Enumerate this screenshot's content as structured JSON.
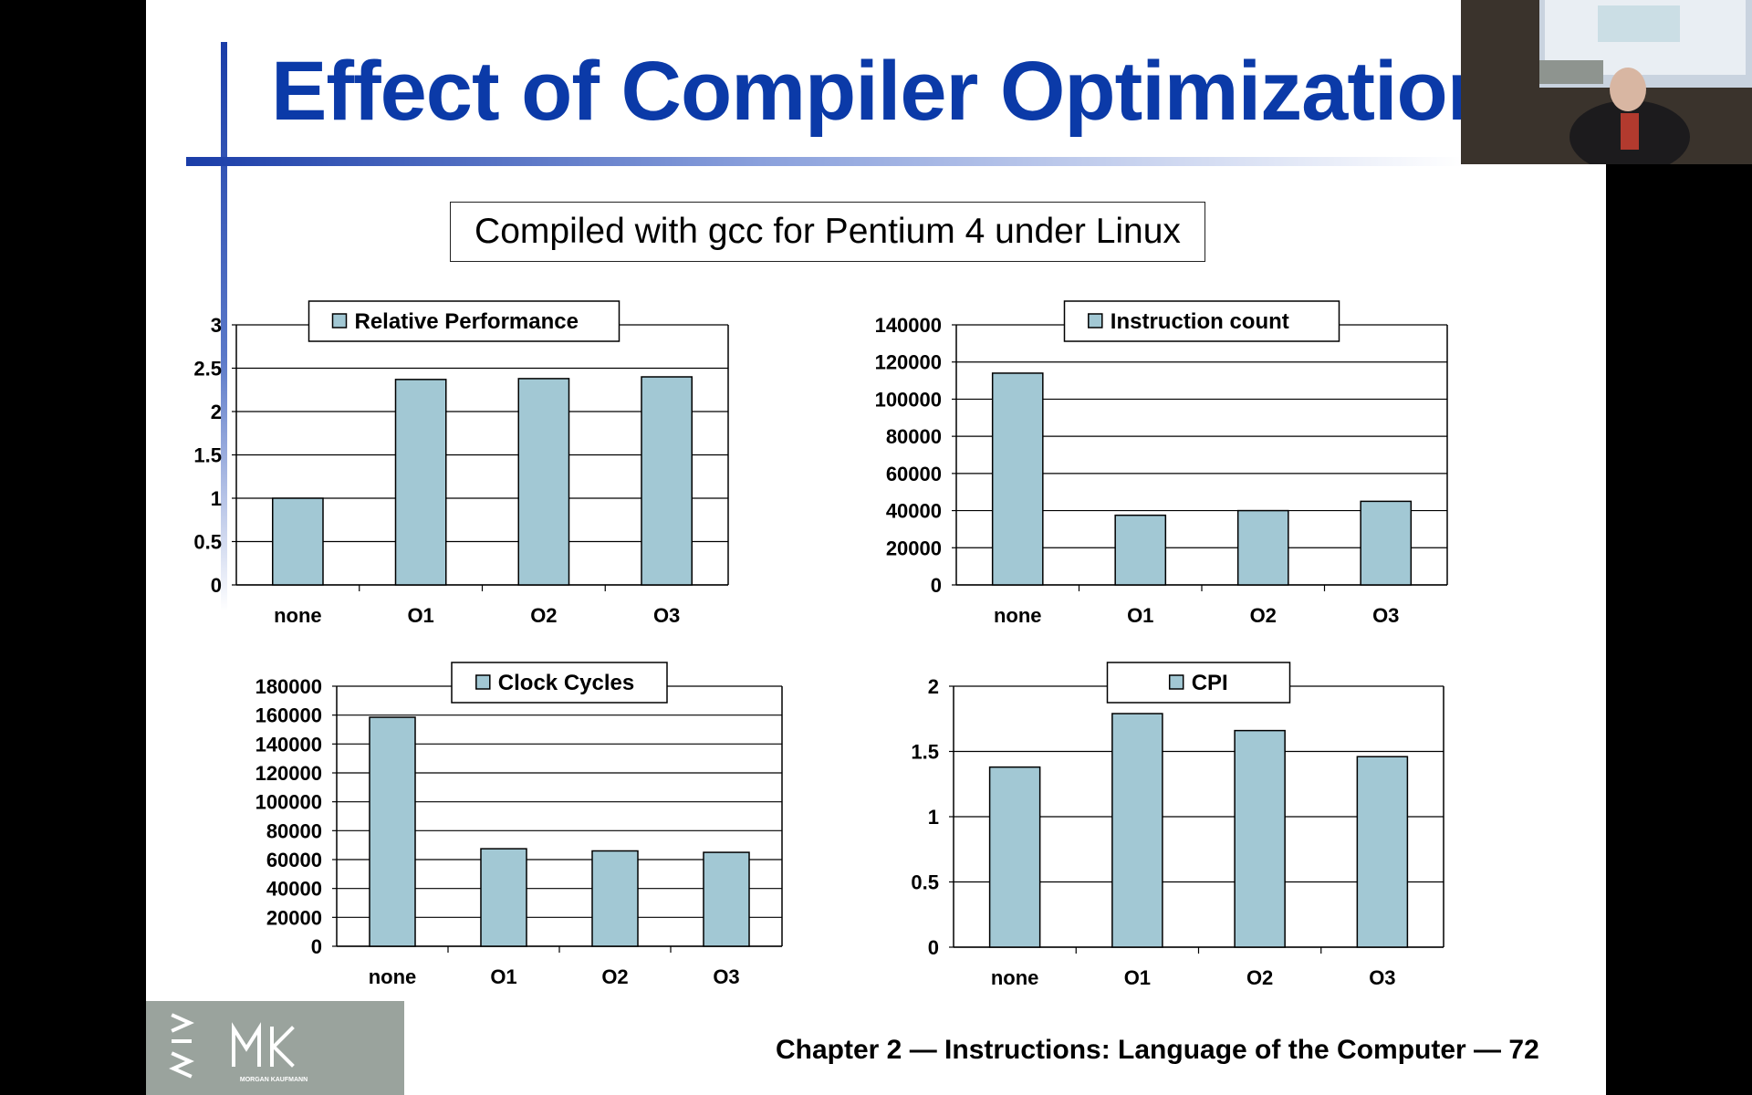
{
  "slide": {
    "title": "Effect of Compiler Optimization",
    "subtitle": "Compiled with gcc for Pentium 4 under Linux",
    "footer": "Chapter 2 — Instructions: Language of the Computer — 72",
    "logo_text": "MORGAN KAUFMANN"
  },
  "colors": {
    "bar": "#a2c8d4",
    "title": "#0b3aa8",
    "accent_bar": "#1a3da8",
    "logo_bg": "#9aa39d"
  },
  "webcam": {
    "icon": "presenter-video-feed"
  },
  "chart_data": [
    {
      "type": "bar",
      "categories": [
        "none",
        "O1",
        "O2",
        "O3"
      ],
      "series": [
        {
          "name": "Relative Performance",
          "values": [
            1.0,
            2.37,
            2.38,
            2.4
          ]
        }
      ],
      "ylim": [
        0,
        3
      ],
      "yticks": [
        0,
        0.5,
        1,
        1.5,
        2,
        2.5,
        3
      ],
      "ytick_labels": [
        "0",
        "0.5",
        "1",
        "1.5",
        "2",
        "2.5",
        "3"
      ],
      "grid": true,
      "legend": "top"
    },
    {
      "type": "bar",
      "categories": [
        "none",
        "O1",
        "O2",
        "O3"
      ],
      "series": [
        {
          "name": "Instruction count",
          "values": [
            114000,
            37500,
            40000,
            45000
          ]
        }
      ],
      "ylim": [
        0,
        140000
      ],
      "yticks": [
        0,
        20000,
        40000,
        60000,
        80000,
        100000,
        120000,
        140000
      ],
      "ytick_labels": [
        "0",
        "20000",
        "40000",
        "60000",
        "80000",
        "100000",
        "120000",
        "140000"
      ],
      "grid": true,
      "legend": "top"
    },
    {
      "type": "bar",
      "categories": [
        "none",
        "O1",
        "O2",
        "O3"
      ],
      "series": [
        {
          "name": "Clock Cycles",
          "values": [
            158500,
            67500,
            66000,
            65000
          ]
        }
      ],
      "ylim": [
        0,
        180000
      ],
      "yticks": [
        0,
        20000,
        40000,
        60000,
        80000,
        100000,
        120000,
        140000,
        160000,
        180000
      ],
      "ytick_labels": [
        "0",
        "20000",
        "40000",
        "60000",
        "80000",
        "100000",
        "120000",
        "140000",
        "160000",
        "180000"
      ],
      "grid": true,
      "legend": "top"
    },
    {
      "type": "bar",
      "categories": [
        "none",
        "O1",
        "O2",
        "O3"
      ],
      "series": [
        {
          "name": "CPI",
          "values": [
            1.38,
            1.79,
            1.66,
            1.46
          ]
        }
      ],
      "ylim": [
        0,
        2
      ],
      "yticks": [
        0,
        0.5,
        1,
        1.5,
        2
      ],
      "ytick_labels": [
        "0",
        "0.5",
        "1",
        "1.5",
        "2"
      ],
      "grid": true,
      "legend": "top"
    }
  ]
}
